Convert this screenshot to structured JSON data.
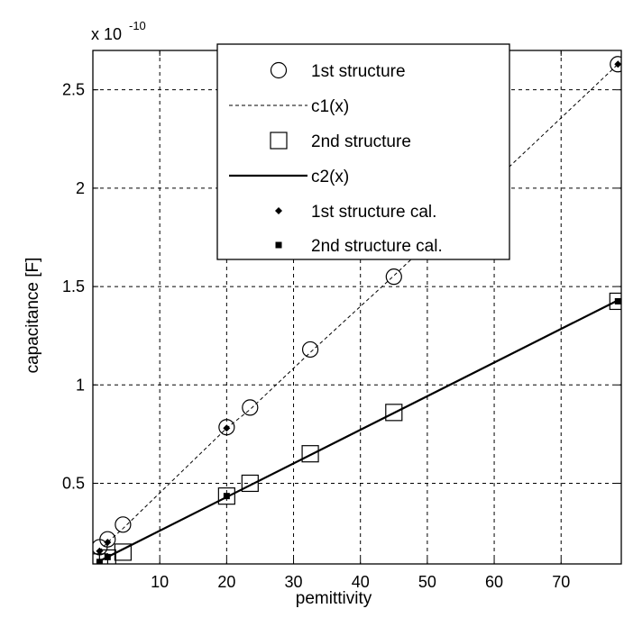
{
  "chart_data": {
    "type": "scatter",
    "title": "",
    "xlabel": "pemittivity",
    "ylabel": "capacitance [F]",
    "y_exponent_base": "x 10",
    "y_exponent_power": "-10",
    "xlim": [
      0,
      79
    ],
    "ylim": [
      0.09,
      2.7
    ],
    "xticks": [
      10,
      20,
      30,
      40,
      50,
      60,
      70
    ],
    "yticks": [
      0.5,
      1,
      1.5,
      2,
      2.5
    ],
    "ytick_labels": [
      "0.5",
      "1",
      "1.5",
      "2",
      "2.5"
    ],
    "grid": true,
    "legend_position": "top-center",
    "series": [
      {
        "name": "1st structure",
        "style": "marker",
        "marker": "open-circle",
        "color": "#000000",
        "points": [
          [
            1,
            0.175
          ],
          [
            2.2,
            0.215
          ],
          [
            4.5,
            0.29
          ],
          [
            20,
            0.785
          ],
          [
            23.5,
            0.885
          ],
          [
            32.5,
            1.18
          ],
          [
            45,
            1.55
          ],
          [
            78.5,
            2.63
          ]
        ]
      },
      {
        "name": "c1(x)",
        "style": "dashed-line",
        "color": "#000000",
        "points": [
          [
            1,
            0.155
          ],
          [
            2.2,
            0.2
          ],
          [
            4.5,
            0.27
          ],
          [
            20,
            0.78
          ],
          [
            23.5,
            0.875
          ],
          [
            32.5,
            1.165
          ],
          [
            45,
            1.555
          ],
          [
            78.5,
            2.63
          ]
        ]
      },
      {
        "name": "2nd structure",
        "style": "marker",
        "marker": "open-square",
        "color": "#000000",
        "points": [
          [
            1,
            0.1
          ],
          [
            2.2,
            0.12
          ],
          [
            4.5,
            0.15
          ],
          [
            20,
            0.435
          ],
          [
            23.5,
            0.5
          ],
          [
            32.5,
            0.65
          ],
          [
            45,
            0.86
          ],
          [
            78.5,
            1.425
          ]
        ]
      },
      {
        "name": "c2(x)",
        "style": "solid-line",
        "color": "#000000",
        "points": [
          [
            1,
            0.105
          ],
          [
            78.5,
            1.43
          ]
        ]
      },
      {
        "name": "1st structure cal.",
        "style": "marker",
        "marker": "small-diamond",
        "color": "#000000",
        "points": [
          [
            1,
            0.155
          ],
          [
            2.2,
            0.2
          ],
          [
            20,
            0.78
          ],
          [
            78.5,
            2.63
          ]
        ]
      },
      {
        "name": "2nd structure cal.",
        "style": "marker",
        "marker": "small-filled-square",
        "color": "#000000",
        "points": [
          [
            1,
            0.1
          ],
          [
            2.2,
            0.125
          ],
          [
            20,
            0.435
          ],
          [
            78.5,
            1.425
          ]
        ]
      }
    ]
  }
}
